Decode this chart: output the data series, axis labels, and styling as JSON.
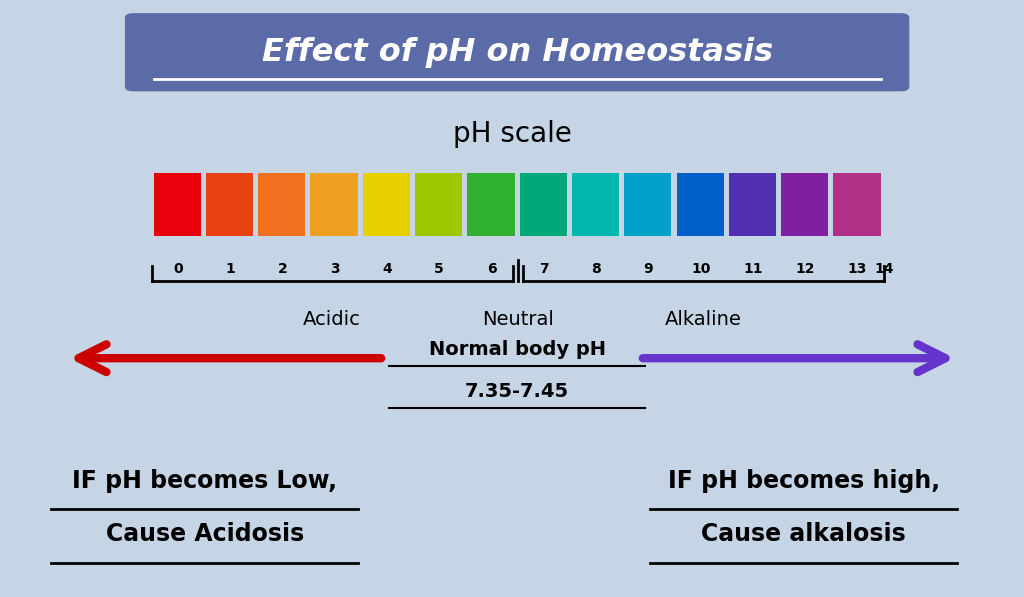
{
  "title": "Effect of pH on Homeostasis",
  "title_bg_color": "#5a6ba8",
  "title_text_color": "#ffffff",
  "bg_color": "#c5d5e5",
  "ph_scale_label": "pH scale",
  "ph_colors": [
    "#e8000a",
    "#e84010",
    "#f07020",
    "#f0a020",
    "#e8d000",
    "#a0c800",
    "#30b030",
    "#00a878",
    "#00b8b0",
    "#00a0c8",
    "#0060c8",
    "#5030b0",
    "#8020a0",
    "#b03088"
  ],
  "ph_numbers": [
    "0",
    "1",
    "2",
    "3",
    "4",
    "5",
    "6",
    "7",
    "8",
    "9",
    "10",
    "11",
    "12",
    "13",
    "14"
  ],
  "acidic_label": "Acidic",
  "neutral_label": "Neutral",
  "alkaline_label": "Alkaline",
  "normal_body_ph_line1": "Normal body pH",
  "normal_body_ph_line2": "7.35-7.45",
  "left_arrow_color": "#cc0000",
  "right_arrow_color": "#6633cc",
  "left_text_line1": "IF pH becomes Low,",
  "left_text_line2": "Cause Acidosis",
  "right_text_line1": "IF pH becomes high,",
  "right_text_line2": "Cause alkalosis"
}
